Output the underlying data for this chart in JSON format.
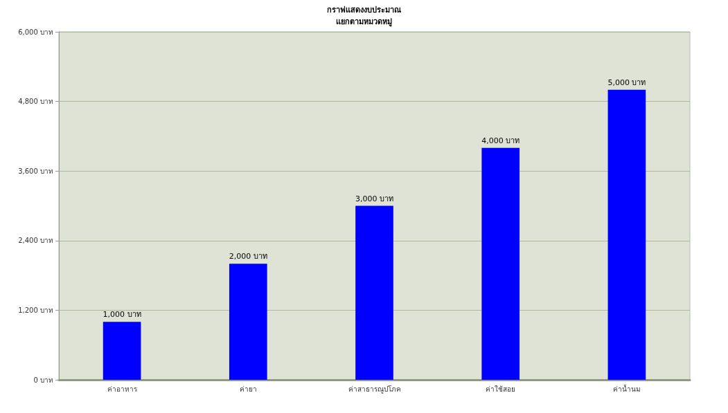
{
  "chart_data": {
    "type": "bar",
    "title": "กราฟแสดงงบประมาณ",
    "subtitle": "แยกตามหมวดหมู่",
    "categories": [
      "ค่าอาหาร",
      "ค่ายา",
      "ค่าสาธารณูปโภค",
      "ค่าใช้สอย",
      "ค่าน้ำนม"
    ],
    "values": [
      1000,
      2000,
      3000,
      4000,
      5000
    ],
    "color": "#0000ff",
    "value_labels": [
      "1,000 บาท",
      "2,000 บาท",
      "3,000 บาท",
      "4,000 บาท",
      "5,000 บาท"
    ],
    "ylim": [
      0,
      6000
    ],
    "yticks": [
      {
        "value": 0,
        "label": "0 บาท"
      },
      {
        "value": 1200,
        "label": "1,200 บาท"
      },
      {
        "value": 2400,
        "label": "2,400 บาท"
      },
      {
        "value": 3600,
        "label": "3,600 บาท"
      },
      {
        "value": 4800,
        "label": "4,800 บาท"
      },
      {
        "value": 6000,
        "label": "6,000 บาท"
      }
    ],
    "grid": "y"
  }
}
